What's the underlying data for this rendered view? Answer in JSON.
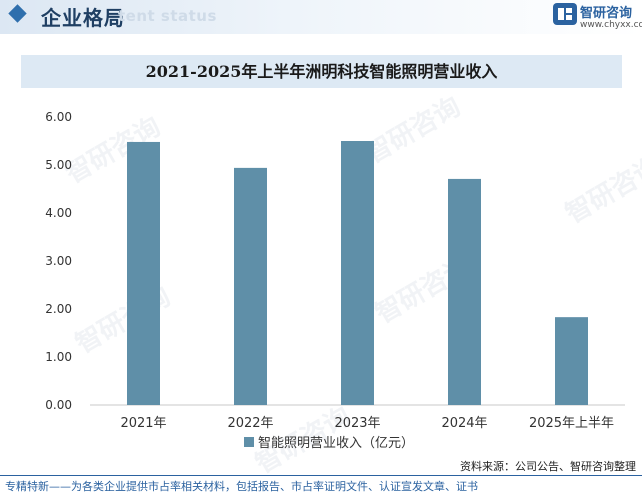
{
  "header": {
    "section_title": "企业格局",
    "section_subtitle": "tent status",
    "brand_name": "智研咨询",
    "brand_url": "www.chyxx.com"
  },
  "watermark_text": "智研咨询",
  "chart_data": {
    "type": "bar",
    "title": "2021-2025年上半年洲明科技智能照明营业收入",
    "categories": [
      "2021年",
      "2022年",
      "2023年",
      "2024年",
      "2025年上半年"
    ],
    "series": [
      {
        "name": "智能照明营业收入（亿元）",
        "values": [
          5.48,
          4.94,
          5.5,
          4.71,
          1.83
        ],
        "color": "#5f8fa8"
      }
    ],
    "y_ticks": [
      "0.00",
      "1.00",
      "2.00",
      "3.00",
      "4.00",
      "5.00",
      "6.00"
    ],
    "ylim": [
      0,
      6
    ],
    "grid": false,
    "legend_position": "bottom"
  },
  "footer": {
    "source": "资料来源：公司公告、智研咨询整理",
    "slogan": "专精特新——为各类企业提供市占率相关材料，包括报告、市占率证明文件、认证宣发文章、证书"
  }
}
